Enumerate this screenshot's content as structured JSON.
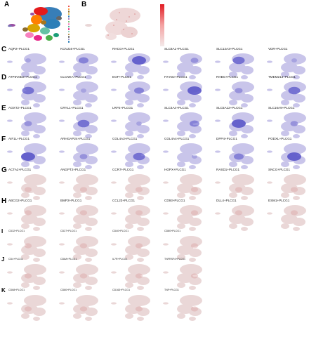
{
  "panel_letters": [
    "A",
    "B",
    "C",
    "D",
    "E",
    "F",
    "G",
    "H",
    "I",
    "J",
    "K"
  ],
  "panelA": {
    "legend": [
      "",
      "",
      "",
      "",
      "",
      "",
      "",
      "",
      "",
      "",
      "",
      "",
      "",
      "",
      ""
    ],
    "legend_colors": [
      "#e41a1c",
      "#ff7f00",
      "#8c6d31",
      "#d9a400",
      "#377eb8",
      "#984ea3",
      "#4daf4a",
      "#f781bf",
      "#1b9e77",
      "#e7298a",
      "#66c2a5",
      "#a6761d",
      "#666666",
      "#7570b3",
      "#2c7fb8"
    ]
  },
  "panelB": {
    "scale_ticks": [
      "",
      "",
      "",
      ""
    ]
  },
  "rows": [
    {
      "letter": "C",
      "cells": [
        "AQP2+PLCG1",
        "KCNJ16+PLCG1",
        "RHCG+PLCG1",
        "SLC8A1+PLCG1",
        "SLC12A3+PLCG1",
        "VDR+PLCG1"
      ],
      "tone": "blue"
    },
    {
      "letter": "D",
      "cells": [
        "ATP6V0D2+PLCG1",
        "CLCNKA+PLCG1",
        "EGF+PLCG1",
        "FXYD2+PLCG1",
        "RHBG+PLCG1",
        "TMEM213+PLCG1"
      ],
      "tone": "blue"
    },
    {
      "letter": "E",
      "cells": [
        "AGXT2+PLCG1",
        "CRYL1+PLCG1",
        "LRP2+PLCG1",
        "SLC4A4+PLCG1",
        "SLC5A12+PLCG1",
        "SLC16A9+PLCG1"
      ],
      "tone": "blue"
    },
    {
      "letter": "F",
      "cells": [
        "AIF1L+PLCG1",
        "ARHGAP24+PLCG1",
        "COL4A3+PLCG1",
        "COL4A4+PLCG1",
        "DPP4+PLCG1",
        "PODXL+PLCG1"
      ],
      "tone": "blue"
    },
    {
      "letter": "G",
      "cells": [
        "ACTA2+PLCG1",
        "ANGPT2+PLCG1",
        "CCR7+PLCG1",
        "HOPX+PLCG1",
        "RASD1+PLCG1",
        "SNCG+PLCG1"
      ],
      "tone": "red"
    },
    {
      "letter": "H",
      "cells": [
        "ABCG2+PLCG1",
        "BMP2+PLCG1",
        "CCL23+PLCG1",
        "CD93+PLCG1",
        "DLL4+PLCG1",
        "ESM1+PLCG1"
      ],
      "tone": "red"
    },
    {
      "letter": "I",
      "cells": [
        "CD32+PLCG1",
        "CD27+PLCG1",
        "CD40+PLCG1",
        "CD80+PLCG1"
      ],
      "tone": "red"
    },
    {
      "letter": "J",
      "cells": [
        "CD4+PLCG1",
        "CD8A+PLCG1",
        "IL7R+PLCG1",
        "TNFRSF4+PLCG1"
      ],
      "tone": "red"
    },
    {
      "letter": "K",
      "cells": [
        "CD68+PLCG1",
        "CD80+PLCG1",
        "CD163+PLCG1",
        "TNF+PLCG1"
      ],
      "tone": "red"
    }
  ]
}
